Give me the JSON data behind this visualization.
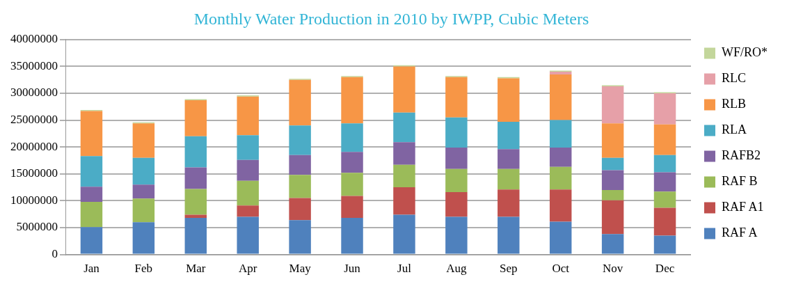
{
  "chart_data": {
    "type": "bar",
    "title": "Monthly Water Production in 2010 by IWPP, Cubic Meters",
    "stacked": true,
    "grid": "y",
    "legend": "right",
    "categories": [
      "Jan",
      "Feb",
      "Mar",
      "Apr",
      "May",
      "Jun",
      "Jul",
      "Aug",
      "Sep",
      "Oct",
      "Nov",
      "Dec"
    ],
    "ylim": [
      0,
      40000000
    ],
    "yticks": [
      0,
      5000000,
      10000000,
      15000000,
      20000000,
      25000000,
      30000000,
      35000000,
      40000000
    ],
    "series": [
      {
        "name": "RAF A",
        "color": "#4f81bd",
        "values": [
          5100000,
          6000000,
          6800000,
          7000000,
          6400000,
          6800000,
          7400000,
          7000000,
          7000000,
          6100000,
          3800000,
          3500000
        ]
      },
      {
        "name": "RAF A1",
        "color": "#c0504d",
        "values": [
          0,
          0,
          600000,
          2100000,
          4100000,
          4100000,
          5100000,
          4600000,
          5100000,
          6000000,
          6300000,
          5200000
        ]
      },
      {
        "name": "RAF B",
        "color": "#9bbb59",
        "values": [
          4700000,
          4400000,
          4800000,
          4600000,
          4300000,
          4300000,
          4200000,
          4300000,
          3800000,
          4200000,
          1900000,
          3000000
        ]
      },
      {
        "name": "RAFB2",
        "color": "#8064a2",
        "values": [
          2800000,
          2600000,
          4000000,
          3900000,
          3700000,
          3900000,
          4200000,
          4000000,
          3700000,
          3600000,
          3700000,
          3600000
        ]
      },
      {
        "name": "RLA",
        "color": "#4bacc6",
        "values": [
          5700000,
          5000000,
          5800000,
          4600000,
          5500000,
          5300000,
          5500000,
          5600000,
          5100000,
          5100000,
          2300000,
          3200000
        ]
      },
      {
        "name": "RLB",
        "color": "#f79646",
        "values": [
          8400000,
          6400000,
          6700000,
          7200000,
          8500000,
          8600000,
          8600000,
          7500000,
          8100000,
          8500000,
          6400000,
          5700000
        ]
      },
      {
        "name": "RLC",
        "color": "#e6a0a8",
        "values": [
          0,
          0,
          0,
          0,
          0,
          0,
          0,
          0,
          0,
          500000,
          6900000,
          5800000
        ]
      },
      {
        "name": "WF/RO*",
        "color": "#c3d69b",
        "values": [
          200000,
          200000,
          200000,
          200000,
          200000,
          200000,
          200000,
          200000,
          200000,
          200000,
          200000,
          200000
        ]
      }
    ]
  }
}
